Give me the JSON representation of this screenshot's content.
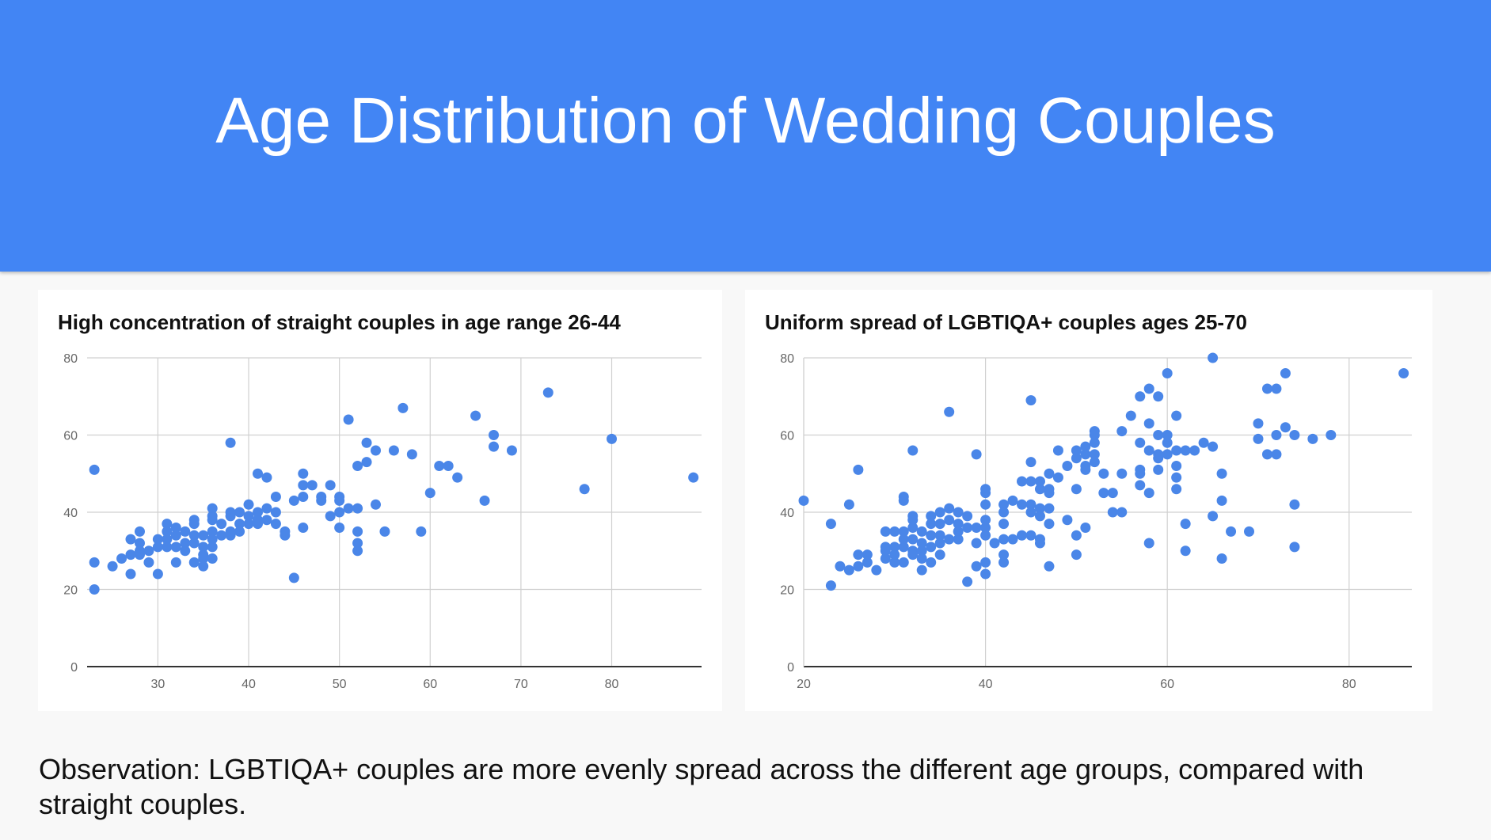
{
  "header": {
    "title": "Age Distribution of Wedding Couples"
  },
  "observation": "Observation: LGBTIQA+ couples are more evenly spread across the different age groups, compared with straight couples.",
  "colors": {
    "header": "#4285f4",
    "point": "#4a86e8",
    "grid": "#d0d0d0",
    "axis": "#333333"
  },
  "chart_data": [
    {
      "type": "scatter",
      "title": "High concentration of straight couples in age range 26-44",
      "xlabel": "",
      "ylabel": "",
      "xlim": [
        22.2,
        89.9
      ],
      "ylim": [
        0,
        80
      ],
      "xticks": [
        30,
        40,
        50,
        60,
        70,
        80
      ],
      "yticks": [
        0,
        20,
        40,
        60,
        80
      ],
      "grid": true,
      "points": [
        [
          23,
          51
        ],
        [
          23,
          27
        ],
        [
          23,
          20
        ],
        [
          25,
          26
        ],
        [
          26,
          28
        ],
        [
          27,
          33
        ],
        [
          27,
          29
        ],
        [
          27,
          24
        ],
        [
          28,
          35
        ],
        [
          28,
          32
        ],
        [
          28,
          30
        ],
        [
          28,
          29
        ],
        [
          29,
          30
        ],
        [
          29,
          27
        ],
        [
          30,
          33
        ],
        [
          30,
          31
        ],
        [
          30,
          24
        ],
        [
          31,
          37
        ],
        [
          31,
          35
        ],
        [
          31,
          33
        ],
        [
          31,
          31
        ],
        [
          32,
          36
        ],
        [
          32,
          34
        ],
        [
          32,
          31
        ],
        [
          32,
          27
        ],
        [
          33,
          35
        ],
        [
          33,
          32
        ],
        [
          33,
          30
        ],
        [
          34,
          38
        ],
        [
          34,
          37
        ],
        [
          34,
          34
        ],
        [
          34,
          32
        ],
        [
          34,
          27
        ],
        [
          35,
          34
        ],
        [
          35,
          31
        ],
        [
          35,
          29
        ],
        [
          35,
          28
        ],
        [
          35,
          26
        ],
        [
          36,
          41
        ],
        [
          36,
          39
        ],
        [
          36,
          38
        ],
        [
          36,
          35
        ],
        [
          36,
          33
        ],
        [
          36,
          31
        ],
        [
          36,
          28
        ],
        [
          37,
          37
        ],
        [
          37,
          34
        ],
        [
          38,
          58
        ],
        [
          38,
          40
        ],
        [
          38,
          39
        ],
        [
          38,
          35
        ],
        [
          38,
          34
        ],
        [
          39,
          40
        ],
        [
          39,
          37
        ],
        [
          39,
          35
        ],
        [
          40,
          42
        ],
        [
          40,
          39
        ],
        [
          40,
          37
        ],
        [
          41,
          50
        ],
        [
          41,
          40
        ],
        [
          41,
          38
        ],
        [
          41,
          37
        ],
        [
          42,
          49
        ],
        [
          42,
          41
        ],
        [
          42,
          38
        ],
        [
          43,
          44
        ],
        [
          43,
          40
        ],
        [
          43,
          37
        ],
        [
          44,
          35
        ],
        [
          44,
          34
        ],
        [
          45,
          43
        ],
        [
          45,
          23
        ],
        [
          46,
          50
        ],
        [
          46,
          47
        ],
        [
          46,
          44
        ],
        [
          46,
          36
        ],
        [
          47,
          47
        ],
        [
          48,
          44
        ],
        [
          48,
          43
        ],
        [
          49,
          47
        ],
        [
          49,
          39
        ],
        [
          50,
          44
        ],
        [
          50,
          43
        ],
        [
          50,
          40
        ],
        [
          50,
          36
        ],
        [
          51,
          64
        ],
        [
          51,
          41
        ],
        [
          52,
          52
        ],
        [
          52,
          41
        ],
        [
          52,
          35
        ],
        [
          52,
          32
        ],
        [
          52,
          30
        ],
        [
          53,
          58
        ],
        [
          53,
          53
        ],
        [
          54,
          56
        ],
        [
          54,
          42
        ],
        [
          55,
          35
        ],
        [
          56,
          56
        ],
        [
          57,
          67
        ],
        [
          58,
          55
        ],
        [
          59,
          35
        ],
        [
          60,
          45
        ],
        [
          61,
          52
        ],
        [
          62,
          52
        ],
        [
          63,
          49
        ],
        [
          65,
          65
        ],
        [
          66,
          43
        ],
        [
          67,
          60
        ],
        [
          67,
          57
        ],
        [
          69,
          56
        ],
        [
          73,
          71
        ],
        [
          77,
          46
        ],
        [
          80,
          59
        ],
        [
          89,
          49
        ]
      ]
    },
    {
      "type": "scatter",
      "title": "Uniform spread of LGBTIQA+ couples ages 25-70",
      "xlabel": "",
      "ylabel": "",
      "xlim": [
        20,
        86.9
      ],
      "ylim": [
        0,
        80
      ],
      "xticks": [
        20,
        40,
        60,
        80
      ],
      "yticks": [
        0,
        20,
        40,
        60,
        80
      ],
      "grid": true,
      "points": [
        [
          20,
          43
        ],
        [
          23,
          37
        ],
        [
          23,
          21
        ],
        [
          24,
          26
        ],
        [
          25,
          25
        ],
        [
          25,
          42
        ],
        [
          26,
          51
        ],
        [
          26,
          29
        ],
        [
          26,
          26
        ],
        [
          27,
          29
        ],
        [
          27,
          27
        ],
        [
          28,
          25
        ],
        [
          29,
          35
        ],
        [
          29,
          31
        ],
        [
          29,
          30
        ],
        [
          29,
          28
        ],
        [
          30,
          35
        ],
        [
          30,
          31
        ],
        [
          30,
          29
        ],
        [
          30,
          27
        ],
        [
          31,
          44
        ],
        [
          31,
          43
        ],
        [
          31,
          35
        ],
        [
          31,
          33
        ],
        [
          31,
          31
        ],
        [
          31,
          27
        ],
        [
          32,
          56
        ],
        [
          32,
          39
        ],
        [
          32,
          38
        ],
        [
          32,
          36
        ],
        [
          32,
          33
        ],
        [
          32,
          30
        ],
        [
          32,
          29
        ],
        [
          33,
          35
        ],
        [
          33,
          32
        ],
        [
          33,
          30
        ],
        [
          33,
          28
        ],
        [
          33,
          25
        ],
        [
          34,
          39
        ],
        [
          34,
          37
        ],
        [
          34,
          34
        ],
        [
          34,
          31
        ],
        [
          34,
          27
        ],
        [
          35,
          40
        ],
        [
          35,
          37
        ],
        [
          35,
          34
        ],
        [
          35,
          32
        ],
        [
          35,
          29
        ],
        [
          36,
          66
        ],
        [
          36,
          41
        ],
        [
          36,
          38
        ],
        [
          36,
          33
        ],
        [
          37,
          40
        ],
        [
          37,
          37
        ],
        [
          37,
          35
        ],
        [
          37,
          33
        ],
        [
          38,
          39
        ],
        [
          38,
          36
        ],
        [
          38,
          22
        ],
        [
          39,
          55
        ],
        [
          39,
          36
        ],
        [
          39,
          32
        ],
        [
          39,
          26
        ],
        [
          40,
          46
        ],
        [
          40,
          45
        ],
        [
          40,
          42
        ],
        [
          40,
          38
        ],
        [
          40,
          36
        ],
        [
          40,
          34
        ],
        [
          40,
          27
        ],
        [
          40,
          24
        ],
        [
          41,
          32
        ],
        [
          42,
          42
        ],
        [
          42,
          40
        ],
        [
          42,
          37
        ],
        [
          42,
          33
        ],
        [
          42,
          29
        ],
        [
          42,
          27
        ],
        [
          43,
          43
        ],
        [
          43,
          33
        ],
        [
          44,
          48
        ],
        [
          44,
          42
        ],
        [
          44,
          34
        ],
        [
          45,
          69
        ],
        [
          45,
          53
        ],
        [
          45,
          48
        ],
        [
          45,
          42
        ],
        [
          45,
          40
        ],
        [
          45,
          34
        ],
        [
          46,
          48
        ],
        [
          46,
          46
        ],
        [
          46,
          41
        ],
        [
          46,
          39
        ],
        [
          46,
          33
        ],
        [
          46,
          32
        ],
        [
          47,
          50
        ],
        [
          47,
          46
        ],
        [
          47,
          45
        ],
        [
          47,
          41
        ],
        [
          47,
          37
        ],
        [
          47,
          26
        ],
        [
          48,
          56
        ],
        [
          48,
          49
        ],
        [
          49,
          52
        ],
        [
          49,
          38
        ],
        [
          50,
          56
        ],
        [
          50,
          54
        ],
        [
          50,
          46
        ],
        [
          50,
          34
        ],
        [
          50,
          29
        ],
        [
          51,
          57
        ],
        [
          51,
          55
        ],
        [
          51,
          52
        ],
        [
          51,
          51
        ],
        [
          51,
          36
        ],
        [
          52,
          61
        ],
        [
          52,
          60
        ],
        [
          52,
          58
        ],
        [
          52,
          55
        ],
        [
          52,
          53
        ],
        [
          53,
          50
        ],
        [
          53,
          45
        ],
        [
          54,
          45
        ],
        [
          54,
          40
        ],
        [
          55,
          61
        ],
        [
          55,
          50
        ],
        [
          55,
          40
        ],
        [
          56,
          65
        ],
        [
          57,
          70
        ],
        [
          57,
          58
        ],
        [
          57,
          51
        ],
        [
          57,
          50
        ],
        [
          57,
          47
        ],
        [
          58,
          72
        ],
        [
          58,
          63
        ],
        [
          58,
          56
        ],
        [
          58,
          45
        ],
        [
          58,
          32
        ],
        [
          59,
          70
        ],
        [
          59,
          60
        ],
        [
          59,
          55
        ],
        [
          59,
          54
        ],
        [
          59,
          51
        ],
        [
          60,
          76
        ],
        [
          60,
          60
        ],
        [
          60,
          58
        ],
        [
          60,
          55
        ],
        [
          61,
          65
        ],
        [
          61,
          56
        ],
        [
          61,
          52
        ],
        [
          61,
          49
        ],
        [
          61,
          46
        ],
        [
          62,
          56
        ],
        [
          62,
          37
        ],
        [
          62,
          30
        ],
        [
          63,
          56
        ],
        [
          64,
          58
        ],
        [
          65,
          80
        ],
        [
          65,
          57
        ],
        [
          65,
          39
        ],
        [
          66,
          50
        ],
        [
          66,
          43
        ],
        [
          66,
          28
        ],
        [
          67,
          35
        ],
        [
          69,
          35
        ],
        [
          70,
          63
        ],
        [
          70,
          59
        ],
        [
          71,
          72
        ],
        [
          71,
          55
        ],
        [
          72,
          72
        ],
        [
          72,
          60
        ],
        [
          72,
          55
        ],
        [
          73,
          76
        ],
        [
          73,
          62
        ],
        [
          74,
          60
        ],
        [
          74,
          42
        ],
        [
          74,
          31
        ],
        [
          76,
          59
        ],
        [
          78,
          60
        ],
        [
          86,
          76
        ]
      ]
    }
  ]
}
